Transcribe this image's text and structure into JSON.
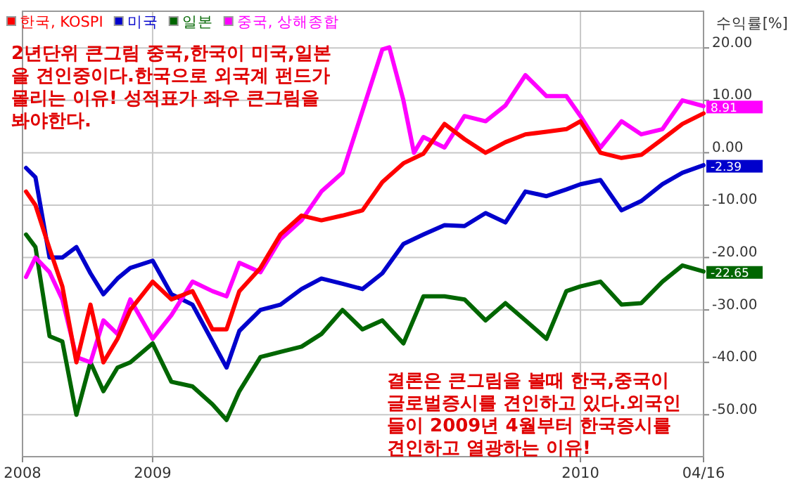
{
  "chart_data": {
    "type": "line",
    "ylabel": "수익률[%]",
    "x": [
      "2008-09-15",
      "2008-09-23",
      "2008-10-05",
      "2008-10-16",
      "2008-10-28",
      "2008-11-09",
      "2008-11-20",
      "2008-12-02",
      "2008-12-13",
      "2009-01-01",
      "2009-01-17",
      "2009-02-04",
      "2009-02-21",
      "2009-03-05",
      "2009-03-16",
      "2009-04-03",
      "2009-04-20",
      "2009-05-08",
      "2009-05-25",
      "2009-06-12",
      "2009-06-29",
      "2009-07-16",
      "2009-08-03",
      "2009-08-20",
      "2009-09-07",
      "2009-09-24",
      "2009-10-12",
      "2009-10-29",
      "2009-11-15",
      "2009-12-03",
      "2009-12-20",
      "2010-01-01",
      "2010-01-18",
      "2010-02-05",
      "2010-02-22",
      "2010-03-12",
      "2010-03-29",
      "2010-04-16"
    ],
    "series": [
      {
        "name": "한국, KOSPI",
        "color": "#ff0000",
        "values": [
          -7.4,
          -10,
          -18.3,
          -25.5,
          -40,
          -29,
          -40,
          -35.5,
          -30,
          -24.6,
          -28,
          -26.4,
          -33.7,
          -33.7,
          -26.4,
          -22,
          -15.6,
          -12,
          -12.9,
          -12,
          -11,
          -5.6,
          -2,
          -0.2,
          5.5,
          2.6,
          0,
          2,
          3.5,
          4,
          4.5,
          6,
          0,
          -1,
          -0.4,
          2.6,
          5.5,
          7.5
        ]
      },
      {
        "name": "미국",
        "color": "#0000cc",
        "values": [
          -2.9,
          -4.7,
          -20,
          -20,
          -18,
          -23,
          -27,
          -24,
          -22,
          -20.6,
          -27,
          -29,
          -36,
          -41,
          -34,
          -30,
          -29,
          -26,
          -24,
          -25,
          -26,
          -23,
          -17.4,
          -15.6,
          -13.8,
          -14,
          -11.5,
          -13.3,
          -7.4,
          -8.3,
          -7,
          -6,
          -5.2,
          -11,
          -9.2,
          -6,
          -3.8,
          -2.39
        ],
        "value_labels": [
          null,
          null,
          null,
          null,
          null,
          null,
          null,
          null,
          null,
          null,
          null,
          null,
          null,
          null,
          null,
          null,
          null,
          null,
          null,
          null,
          null,
          null,
          null,
          null,
          null,
          null,
          null,
          null,
          null,
          null,
          null,
          null,
          null,
          null,
          null,
          null,
          null,
          "-2.39"
        ]
      },
      {
        "name": "일본",
        "color": "#006600",
        "values": [
          -15.6,
          -18,
          -35,
          -36,
          -50,
          -40,
          -45.5,
          -41,
          -40,
          -36.4,
          -43.7,
          -44.6,
          -48,
          -51,
          -45.5,
          -39,
          -38,
          -37,
          -34.6,
          -30,
          -33.7,
          -32,
          -36.4,
          -27.4,
          -27.4,
          -28,
          -32,
          -28.7,
          -32,
          -35.5,
          -26.4,
          -25.5,
          -24.6,
          -29,
          -28.7,
          -24.6,
          -21.5,
          -22.65
        ],
        "value_labels": [
          null,
          null,
          null,
          null,
          null,
          null,
          null,
          null,
          null,
          null,
          null,
          null,
          null,
          null,
          null,
          null,
          null,
          null,
          null,
          null,
          null,
          null,
          null,
          null,
          null,
          null,
          null,
          null,
          null,
          null,
          null,
          null,
          null,
          null,
          null,
          null,
          null,
          "-22.65"
        ]
      },
      {
        "name": "중국, 상해종합",
        "color": "#ff00ff",
        "x": [
          "2008-09-15",
          "2008-09-23",
          "2008-10-05",
          "2008-10-16",
          "2008-10-28",
          "2008-11-09",
          "2008-11-20",
          "2008-12-02",
          "2008-12-13",
          "2009-01-01",
          "2009-01-17",
          "2009-02-04",
          "2009-02-21",
          "2009-03-05",
          "2009-03-16",
          "2009-04-03",
          "2009-04-20",
          "2009-05-08",
          "2009-05-25",
          "2009-06-12",
          "2009-06-29",
          "2009-07-16",
          "2009-07-22",
          "2009-08-03",
          "2009-08-12",
          "2009-08-20",
          "2009-09-07",
          "2009-09-24",
          "2009-10-12",
          "2009-10-29",
          "2009-11-15",
          "2009-12-03",
          "2009-12-20",
          "2010-01-01",
          "2010-01-18",
          "2010-02-05",
          "2010-02-22",
          "2010-03-12",
          "2010-03-29",
          "2010-04-16"
        ],
        "values": [
          -23.7,
          -20,
          -22.8,
          -28,
          -39,
          -40,
          -32,
          -34.6,
          -28,
          -35.5,
          -31,
          -24.6,
          -26.4,
          -27.4,
          -21,
          -22.8,
          -16.5,
          -12.9,
          -7.4,
          -3.8,
          8,
          19.7,
          20.1,
          10,
          0,
          3,
          1,
          7,
          6,
          9,
          14.8,
          10.8,
          10.8,
          7,
          1,
          6,
          3.5,
          4.5,
          10,
          8.91
        ],
        "value_labels": [
          null,
          null,
          null,
          null,
          null,
          null,
          null,
          null,
          null,
          null,
          null,
          null,
          null,
          null,
          null,
          null,
          null,
          null,
          null,
          null,
          null,
          null,
          null,
          null,
          null,
          null,
          null,
          null,
          null,
          null,
          null,
          null,
          null,
          null,
          null,
          null,
          null,
          null,
          null,
          "8.91"
        ]
      }
    ],
    "xlim": [
      "2008-09-12",
      "2010-04-16"
    ],
    "xticks": [
      {
        "value": "2008-09-12",
        "label": "2008"
      },
      {
        "value": "2009-01-01",
        "label": "2009"
      },
      {
        "value": "2010-01-01",
        "label": "2010"
      },
      {
        "value": "2010-04-16",
        "label": "04/16"
      }
    ],
    "ylim": [
      -58,
      27
    ],
    "yticks": [
      {
        "value": 20,
        "label": "20.00"
      },
      {
        "value": 10,
        "label": "10.00"
      },
      {
        "value": 0,
        "label": "0.00"
      },
      {
        "value": -10,
        "label": "-10.00"
      },
      {
        "value": -20,
        "label": "-20.00"
      },
      {
        "value": -30,
        "label": "-30.00"
      },
      {
        "value": -40,
        "label": "-40.00"
      },
      {
        "value": -50,
        "label": "-50.00"
      }
    ],
    "grid": true,
    "legend": "top left",
    "annotations": [
      "2년단위 큰그림 중국,한국이 미국,일본을 견인중이다.한국으로 외국계 펀드가 몰리는 이유! 성적표가 좌우 큰그림을 봐야한다.",
      "결론은 큰그림을 볼때 한국,중국이 글로벌증시를 견인하고 있다.외국인들이 2009년 4월부터 한국증시를 견인하고 열광하는 이유!"
    ]
  }
}
